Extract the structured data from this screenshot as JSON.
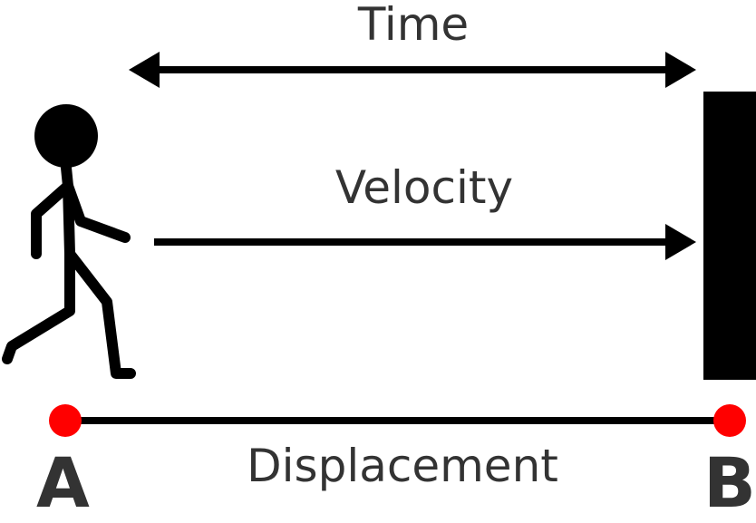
{
  "labels": {
    "time": "Time",
    "velocity": "Velocity",
    "displacement": "Displacement",
    "point_a": "A",
    "point_b": "B"
  },
  "colors": {
    "stroke": "#000000",
    "text": "#333333",
    "point": "#ff0000"
  }
}
